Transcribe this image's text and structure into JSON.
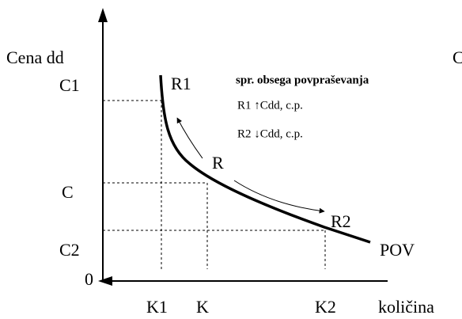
{
  "axes": {
    "y_label": "Cena dd",
    "y_label_cut": "C",
    "x_label": "količina",
    "origin": "0"
  },
  "price_levels": [
    "C1",
    "C",
    "C2"
  ],
  "quantity_levels": [
    "K1",
    "K",
    "K2"
  ],
  "points": [
    "R1",
    "R",
    "R2"
  ],
  "curve_label": "POV",
  "legend": {
    "title": "spr. obsega povpraševanja",
    "lines": [
      "R1 ↑Cdd, c.p.",
      "R2 ↓Cdd, c.p."
    ]
  }
}
